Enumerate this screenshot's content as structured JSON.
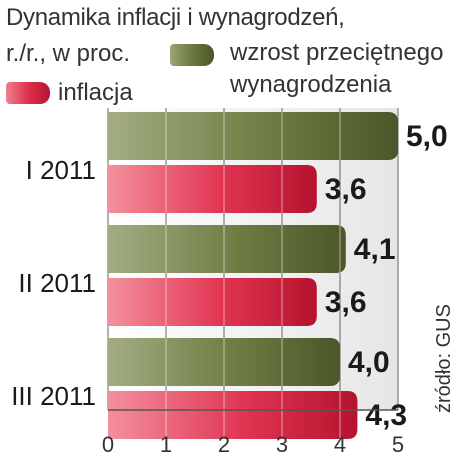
{
  "chart_data": {
    "type": "bar",
    "orientation": "horizontal",
    "title": "Dynamika inflacji i wynagrodzeń,",
    "subtitle": "r./r., w proc.",
    "categories": [
      "I 2011",
      "II 2011",
      "III 2011"
    ],
    "series": [
      {
        "name": "wzrost przeciętnego wynagrodzenia",
        "values": [
          5.0,
          4.1,
          4.0
        ],
        "labels": [
          "5,0",
          "4,1",
          "4,0"
        ],
        "color": "#5d6b33"
      },
      {
        "name": "inflacja",
        "values": [
          3.6,
          3.6,
          4.3
        ],
        "labels": [
          "3,6",
          "3,6",
          "4,3"
        ],
        "color": "#d8263f"
      }
    ],
    "xlim": [
      0,
      5
    ],
    "xticks": [
      "0",
      "1",
      "2",
      "3",
      "4",
      "5"
    ],
    "grid": true,
    "legend": "top"
  },
  "legend": {
    "wage_line1": "wzrost przeciętnego",
    "wage_line2": "wynagrodzenia",
    "inflation": "inflacja"
  },
  "source": "źródło: GUS"
}
